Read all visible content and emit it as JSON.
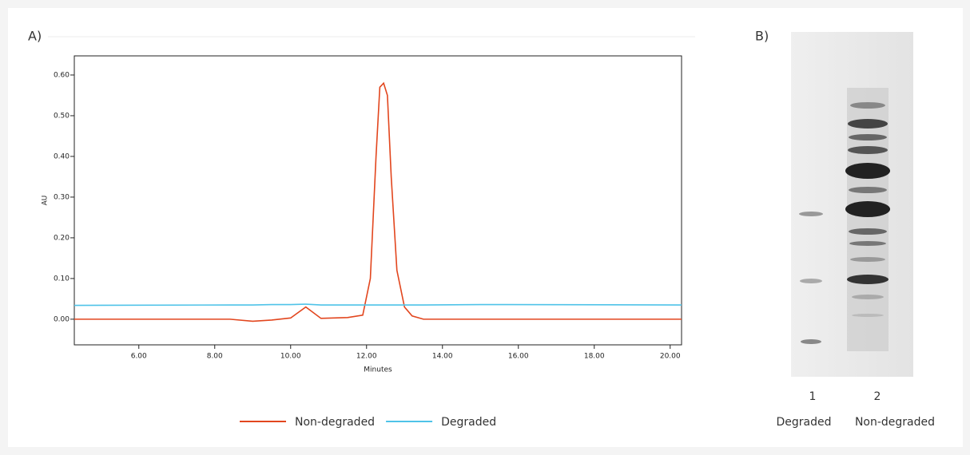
{
  "chart_data": {
    "type": "line",
    "panel_label": "A)",
    "xlabel": "Minutes",
    "ylabel": "AU",
    "x": [
      4.3,
      8.4,
      9.0,
      9.5,
      10.0,
      10.4,
      10.8,
      11.5,
      11.9,
      12.1,
      12.25,
      12.35,
      12.45,
      12.55,
      12.65,
      12.8,
      13.0,
      13.2,
      13.5,
      15,
      20.3
    ],
    "series": [
      {
        "name": "Non-degraded",
        "color": "#e2461e",
        "values": [
          0,
          0,
          -0.005,
          -0.002,
          0.003,
          0.03,
          0.002,
          0.004,
          0.01,
          0.1,
          0.4,
          0.57,
          0.58,
          0.55,
          0.35,
          0.12,
          0.03,
          0.008,
          0,
          0,
          0
        ]
      },
      {
        "name": "Degraded",
        "color": "#4fc3e8",
        "values": [
          0.034,
          0.035,
          0.035,
          0.036,
          0.036,
          0.037,
          0.035,
          0.035,
          0.035,
          0.035,
          0.035,
          0.035,
          0.035,
          0.035,
          0.035,
          0.035,
          0.035,
          0.035,
          0.035,
          0.036,
          0.035
        ]
      }
    ],
    "xlim": [
      4.3,
      20.3
    ],
    "xticks": [
      {
        "value": 6,
        "label": "6.00"
      },
      {
        "value": 8,
        "label": "8.00"
      },
      {
        "value": 10,
        "label": "10.00"
      },
      {
        "value": 12,
        "label": "12.00"
      },
      {
        "value": 14,
        "label": "14.00"
      },
      {
        "value": 16,
        "label": "16.00"
      },
      {
        "value": 18,
        "label": "18.00"
      },
      {
        "value": 20,
        "label": "20.00"
      }
    ],
    "ylim": [
      -0.063,
      0.647
    ],
    "yticks": [
      {
        "value": 0,
        "label": "0.00"
      },
      {
        "value": 0.1,
        "label": "0.10"
      },
      {
        "value": 0.2,
        "label": "0.20"
      },
      {
        "value": 0.3,
        "label": "0.30"
      },
      {
        "value": 0.4,
        "label": "0.40"
      },
      {
        "value": 0.5,
        "label": "0.50"
      },
      {
        "value": 0.6,
        "label": "0.60"
      }
    ],
    "legend": "bottom"
  },
  "gel": {
    "panel_label": "B)",
    "lanes": [
      {
        "number": "1",
        "name": "Degraded",
        "color": "#e2461e"
      },
      {
        "number": "2",
        "name": "Non-degraded",
        "color": "#4fc3e8"
      }
    ]
  }
}
